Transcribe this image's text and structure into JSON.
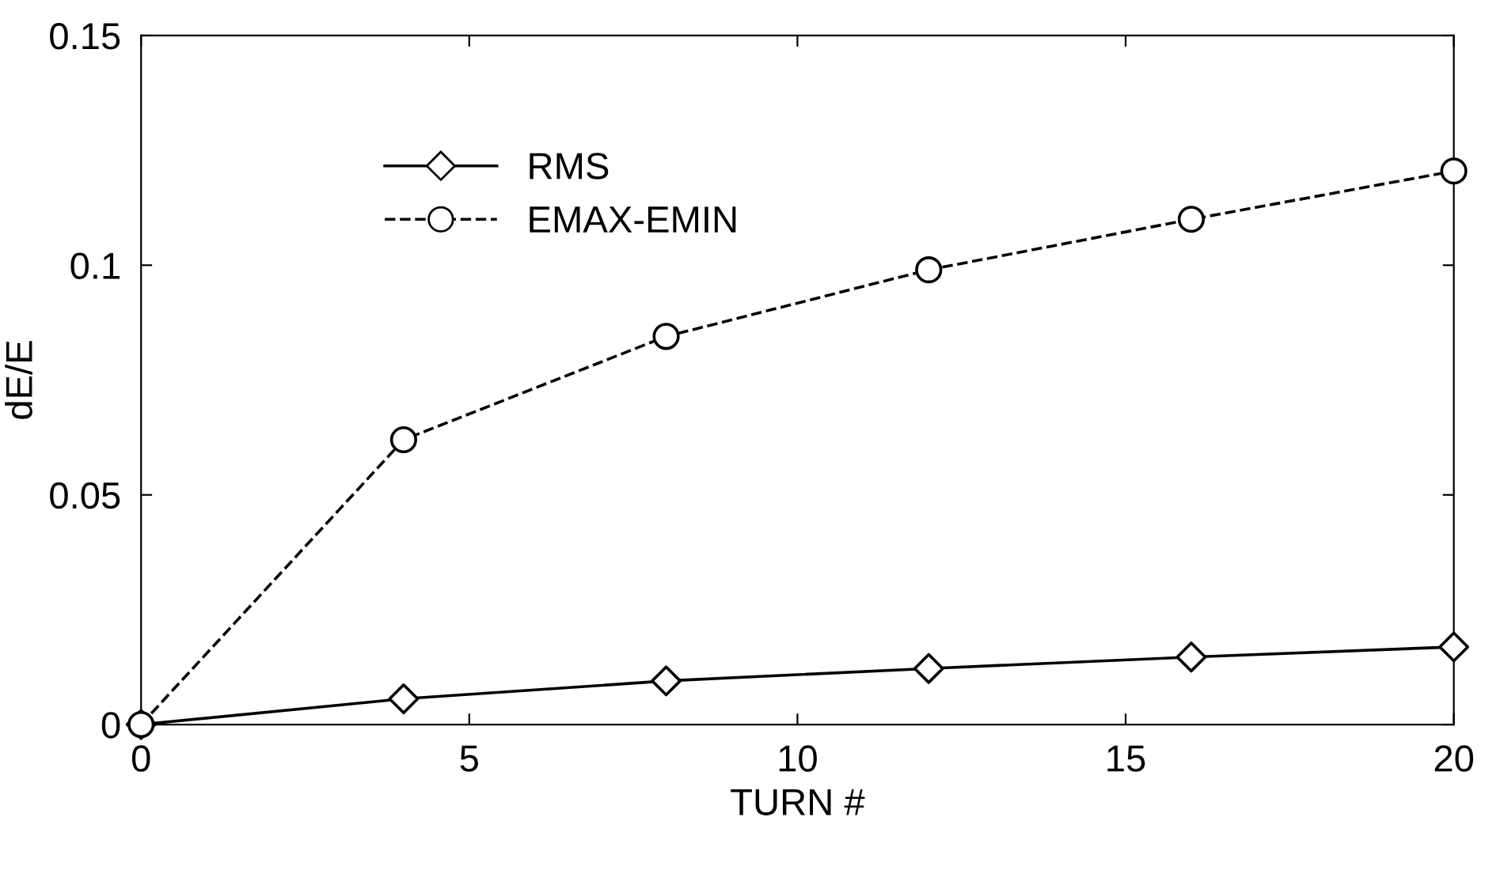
{
  "chart_data": {
    "type": "line",
    "xlabel": "TURN #",
    "ylabel": "dE/E",
    "x": [
      0,
      4,
      8,
      12,
      16,
      20
    ],
    "series": [
      {
        "name": "RMS",
        "color": "#000000",
        "marker": "diamond",
        "line_style": "solid",
        "values": [
          0,
          0.0056,
          0.0095,
          0.0122,
          0.0147,
          0.0169
        ]
      },
      {
        "name": "EMAX-EMIN",
        "color": "#000000",
        "marker": "circle",
        "line_style": "dashed",
        "values": [
          0,
          0.062,
          0.0845,
          0.099,
          0.11,
          0.1205
        ]
      }
    ],
    "xlim": [
      0,
      20
    ],
    "xticks": [
      0,
      5,
      10,
      15,
      20
    ],
    "ylim": [
      0,
      0.15
    ],
    "yticks": [
      0,
      0.05,
      0.1,
      0.15
    ],
    "grid": false,
    "legend": "top left"
  }
}
